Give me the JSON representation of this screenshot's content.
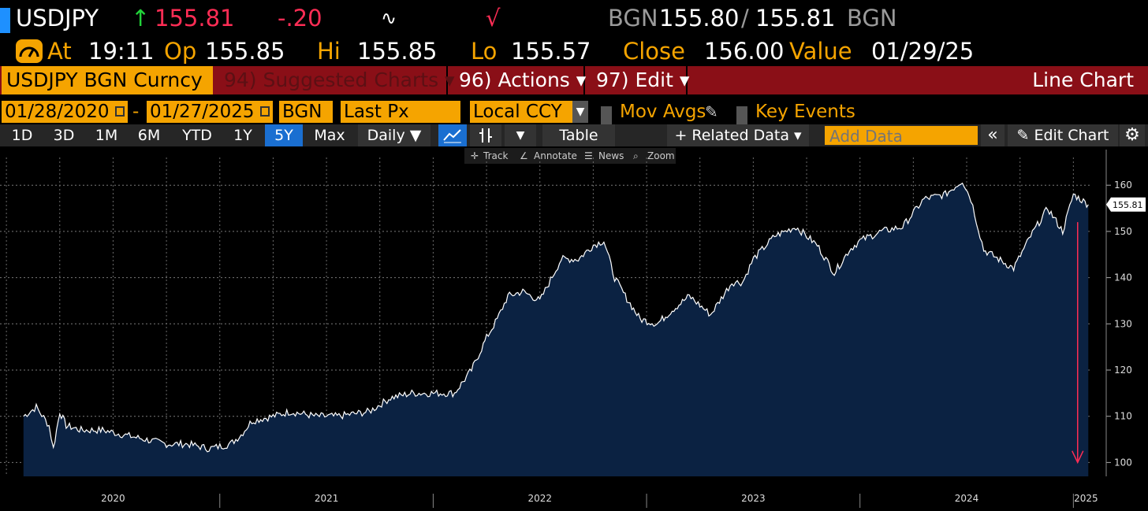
{
  "header": {
    "ticker": "USDJPY",
    "up_arrow": "↑",
    "last": "155.81",
    "change": "-.20",
    "spark_icon": "∿",
    "check_mark": "√",
    "bid_source": "BGN",
    "bid": "155.80",
    "slash": "/",
    "ask": "155.81",
    "ask_source": "BGN"
  },
  "quote": {
    "at_label": "At",
    "at_value": "19:11",
    "op_label": "Op",
    "op_value": "155.85",
    "hi_label": "Hi",
    "hi_value": "155.85",
    "lo_label": "Lo",
    "lo_value": "155.57",
    "close_label": "Close",
    "close_value": "156.00",
    "value_label": "Value",
    "value_value": "01/29/25"
  },
  "menu": {
    "security": "USDJPY BGN Curncy",
    "suggested": "94) Suggested Charts ▾",
    "actions": "96) Actions ▾",
    "edit": "97) Edit ▾",
    "chart_type": "Line Chart"
  },
  "params": {
    "start_date": "01/28/2020",
    "dash": "-",
    "end_date": "01/27/2025",
    "source": "BGN",
    "field": "Last Px",
    "currency": "Local CCY",
    "mov_avgs": "Mov Avgs",
    "key_events": "Key Events"
  },
  "toolbar": {
    "periods": [
      "1D",
      "3D",
      "1M",
      "6M",
      "YTD",
      "1Y",
      "5Y",
      "Max"
    ],
    "selected_period": "5Y",
    "frequency": "Daily ▼",
    "table": "Table",
    "related": "+ Related Data ▾",
    "add_data_placeholder": "Add Data",
    "collapse": "«",
    "edit_chart": "✎ Edit Chart",
    "settings": "⚙"
  },
  "subtoolbar": {
    "track": "Track",
    "annotate": "Annotate",
    "news": "News",
    "zoom": "Zoom"
  },
  "colors": {
    "accent_orange": "#f5a400",
    "menu_red": "#8a0f17",
    "area_fill": "#0b2242",
    "line": "#ffffff",
    "arrow": "#ff2d55"
  },
  "chart_data": {
    "type": "area",
    "title": "",
    "xlabel": "",
    "ylabel": "",
    "ylim": [
      97,
      166
    ],
    "yticks": [
      100,
      110,
      120,
      130,
      140,
      150,
      160
    ],
    "year_labels": [
      "2020",
      "2021",
      "2022",
      "2023",
      "2024",
      "2025"
    ],
    "last_value_label": "155.81",
    "series": [
      {
        "x": [
          2020.08,
          2020.14,
          2020.2,
          2020.22,
          2020.25,
          2020.28,
          2020.35,
          2020.45,
          2020.55,
          2020.65,
          2020.75,
          2020.85,
          2020.95,
          2021.05,
          2021.1,
          2021.15,
          2021.25,
          2021.33,
          2021.45,
          2021.55,
          2021.7,
          2021.8,
          2021.9,
          2022.0,
          2022.1,
          2022.18,
          2022.25,
          2022.3,
          2022.35,
          2022.42,
          2022.5,
          2022.6,
          2022.68,
          2022.75,
          2022.8,
          2022.85,
          2022.9,
          2022.97,
          2023.05,
          2023.12,
          2023.2,
          2023.3,
          2023.4,
          2023.45,
          2023.5,
          2023.6,
          2023.7,
          2023.8,
          2023.88,
          2023.95,
          2024.0,
          2024.1,
          2024.2,
          2024.3,
          2024.4,
          2024.48,
          2024.52,
          2024.58,
          2024.65,
          2024.72,
          2024.8,
          2024.88,
          2024.95,
          2025.0,
          2025.07
        ],
        "y": [
          110,
          112,
          108,
          103,
          111,
          108,
          107,
          107,
          106,
          105,
          104,
          104,
          103,
          104,
          106,
          109,
          110,
          111,
          110,
          110,
          111,
          114,
          115,
          115,
          115,
          120,
          127,
          131,
          136,
          137,
          135,
          144,
          144,
          147,
          148,
          140,
          136,
          131,
          130,
          133,
          136,
          132,
          139,
          139,
          144,
          149,
          151,
          147,
          141,
          146,
          148,
          150,
          151,
          157,
          158,
          161,
          157,
          146,
          144,
          142,
          149,
          155,
          150,
          158,
          155.81
        ]
      }
    ]
  }
}
